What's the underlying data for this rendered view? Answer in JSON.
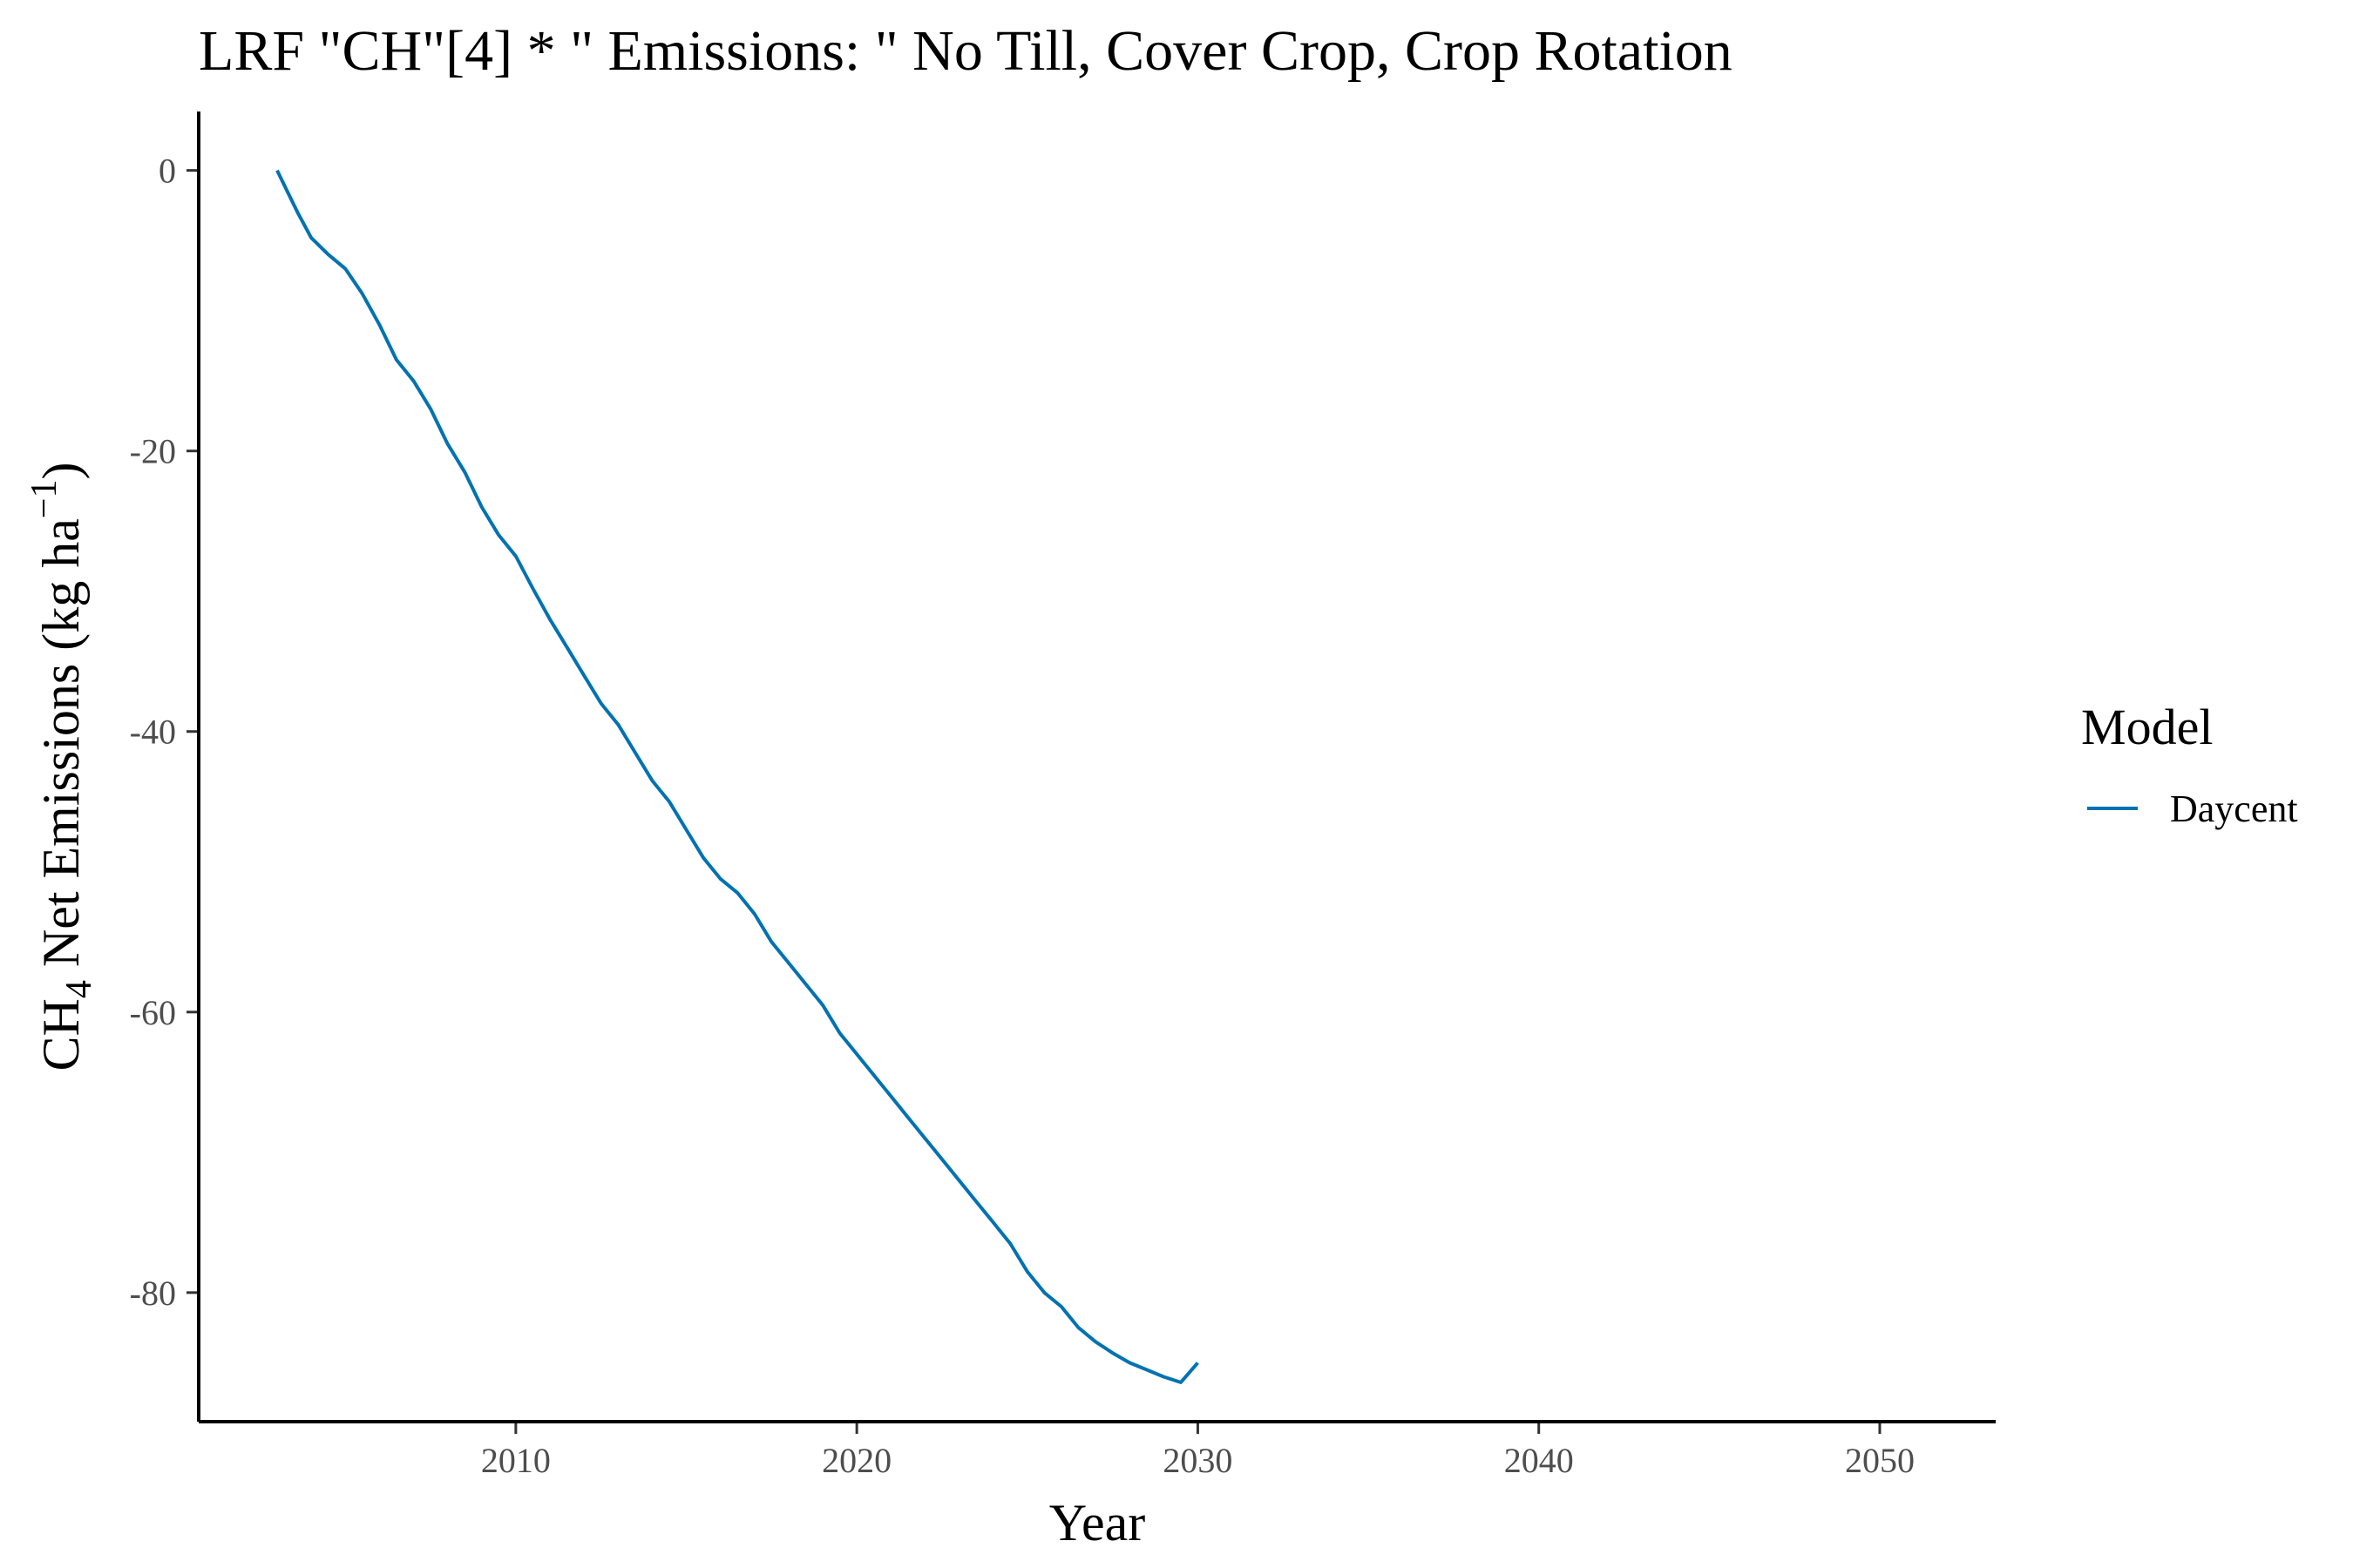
{
  "chart_data": {
    "type": "line",
    "title": "LRF \"CH\"[4] * \" Emissions: \" No Till, Cover Crop, Crop Rotation",
    "xlabel": "Year",
    "ylabel": {
      "prefix": "CH",
      "prefix_sub": "4",
      "main": " Net Emissions (kg ha",
      "sup": "−1",
      "suffix": ")"
    },
    "xlim": [
      2000.7,
      2053.4
    ],
    "ylim": [
      -89.2,
      4.2
    ],
    "x_ticks": [
      2010,
      2020,
      2030,
      2040,
      2050
    ],
    "y_ticks": [
      0,
      -20,
      -40,
      -60,
      -80
    ],
    "grid": false,
    "legend": {
      "title": "Model",
      "position": "right"
    },
    "series": [
      {
        "name": "Daycent",
        "color": "#0072b2",
        "x": [
          2003.0,
          2003.3,
          2003.6,
          2004.0,
          2004.5,
          2005.0,
          2005.5,
          2006.0,
          2006.5,
          2007.0,
          2007.5,
          2008.0,
          2008.5,
          2009.0,
          2009.5,
          2010.0,
          2010.5,
          2011.0,
          2011.5,
          2012.0,
          2012.5,
          2013.0,
          2013.5,
          2014.0,
          2014.5,
          2015.0,
          2015.5,
          2016.0,
          2016.5,
          2017.0,
          2017.5,
          2018.0,
          2018.5,
          2019.0,
          2019.5,
          2020.0,
          2020.5,
          2021.0,
          2021.5,
          2022.0,
          2022.5,
          2023.0,
          2023.5,
          2024.0,
          2024.5,
          2025.0,
          2025.5,
          2026.0,
          2026.5,
          2027.0,
          2027.5,
          2028.0,
          2028.5,
          2029.0,
          2029.5,
          2030.0
        ],
        "y": [
          0.0,
          -1.5,
          -3.0,
          -4.8,
          -6.0,
          -7.0,
          -8.8,
          -11.0,
          -13.5,
          -15.0,
          -17.0,
          -19.5,
          -21.5,
          -24.0,
          -26.0,
          -27.5,
          -29.8,
          -32.0,
          -34.0,
          -36.0,
          -38.0,
          -39.5,
          -41.5,
          -43.5,
          -45.0,
          -47.0,
          -49.0,
          -50.5,
          -51.5,
          -53.0,
          -55.0,
          -56.5,
          -58.0,
          -59.5,
          -61.5,
          -63.0,
          -64.5,
          -66.0,
          -67.5,
          -69.0,
          -70.5,
          -72.0,
          -73.5,
          -75.0,
          -76.5,
          -78.5,
          -80.0,
          -81.0,
          -82.5,
          -83.5,
          -84.3,
          -85.0,
          -85.5,
          -86.0,
          -86.4,
          -85.0
        ]
      }
    ]
  }
}
